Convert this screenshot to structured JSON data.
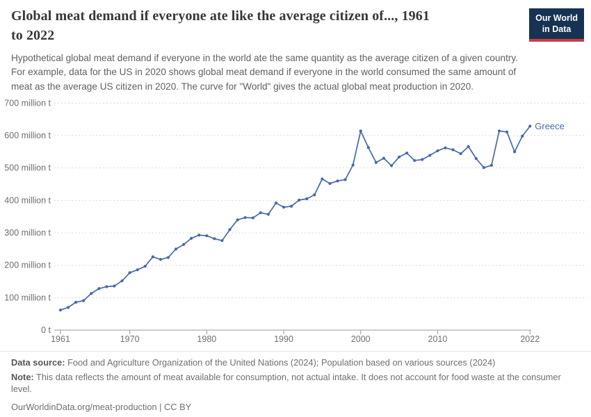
{
  "header": {
    "title_lines": [
      "Global meat demand if everyone ate like the average citizen of..., 1961",
      "to 2022"
    ],
    "logo": {
      "line1": "Our World",
      "line2": "in Data"
    }
  },
  "subtitle_lines": [
    "Hypothetical global meat demand if everyone in the world ate the same quantity as the average citizen of a given country.",
    "For example, data for the US in 2020 shows global meat demand if everyone in the world consumed the same amount of",
    "meat as the average US citizen in 2020. The curve for \"World\" gives the actual global meat production in 2020."
  ],
  "colors": {
    "logo_navy": "#173353",
    "logo_red": "#cf3b42",
    "series_blue": "#4768a8",
    "grid_gray": "#d9d9d9"
  },
  "chart_data": {
    "type": "line",
    "title": "Global meat demand if everyone ate like the average citizen of..., 1961 to 2022",
    "unit": "million t",
    "xlim": [
      1961,
      2022
    ],
    "ylim": [
      0,
      700
    ],
    "grid": "horizontal-dashed",
    "legend_position": "end-of-line-label",
    "x_ticks": [
      1961,
      1970,
      1980,
      1990,
      2000,
      2010,
      2022
    ],
    "y_ticks": [
      {
        "value": 0,
        "label": "0 t"
      },
      {
        "value": 100,
        "label": "100 million t"
      },
      {
        "value": 200,
        "label": "200 million t"
      },
      {
        "value": 300,
        "label": "300 million t"
      },
      {
        "value": 400,
        "label": "400 million t"
      },
      {
        "value": 500,
        "label": "500 million t"
      },
      {
        "value": 600,
        "label": "600 million t"
      },
      {
        "value": 700,
        "label": "700 million t"
      }
    ],
    "x": [
      1961,
      1962,
      1963,
      1964,
      1965,
      1966,
      1967,
      1968,
      1969,
      1970,
      1971,
      1972,
      1973,
      1974,
      1975,
      1976,
      1977,
      1978,
      1979,
      1980,
      1981,
      1982,
      1983,
      1984,
      1985,
      1986,
      1987,
      1988,
      1989,
      1990,
      1991,
      1992,
      1993,
      1994,
      1995,
      1996,
      1997,
      1998,
      1999,
      2000,
      2001,
      2002,
      2003,
      2004,
      2005,
      2006,
      2007,
      2008,
      2009,
      2010,
      2011,
      2012,
      2013,
      2014,
      2015,
      2016,
      2017,
      2018,
      2019,
      2020,
      2021,
      2022
    ],
    "series": [
      {
        "name": "Greece",
        "color": "#4768a8",
        "values": [
          62,
          70,
          86,
          91,
          113,
          128,
          134,
          136,
          152,
          177,
          186,
          197,
          226,
          218,
          224,
          250,
          264,
          283,
          293,
          291,
          282,
          276,
          310,
          340,
          347,
          346,
          362,
          357,
          392,
          379,
          382,
          401,
          405,
          417,
          466,
          452,
          460,
          464,
          509,
          614,
          563,
          517,
          530,
          507,
          534,
          546,
          523,
          526,
          539,
          553,
          562,
          556,
          544,
          566,
          529,
          501,
          508,
          614,
          611,
          550,
          598,
          629
        ]
      }
    ],
    "end_label": "Greece"
  },
  "footer": {
    "datasource_label": "Data source:",
    "datasource_text": "Food and Agriculture Organization of the United Nations (2024); Population based on various sources (2024)",
    "note_label": "Note:",
    "note_text": "This data reflects the amount of meat available for consumption, not actual intake. It does not account for food waste at the consumer level.",
    "url": "OurWorldinData.org/meat-production",
    "separator": " | ",
    "license": "CC BY"
  }
}
